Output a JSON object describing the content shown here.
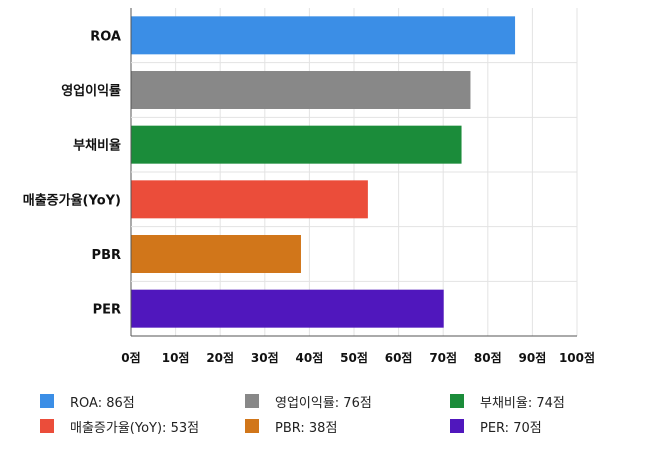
{
  "chart_data": {
    "type": "bar",
    "orientation": "horizontal",
    "categories": [
      "ROA",
      "영업이익률",
      "부채비율",
      "매출증가율(YoY)",
      "PBR",
      "PER"
    ],
    "values": [
      86,
      76,
      74,
      53,
      38,
      70
    ],
    "colors": [
      "#3b8ee6",
      "#888888",
      "#1b8c3a",
      "#eb4d3a",
      "#d1761a",
      "#5017bd"
    ],
    "xlim": [
      0,
      100
    ],
    "x_ticks": [
      "0점",
      "10점",
      "20점",
      "30점",
      "40점",
      "50점",
      "60점",
      "70점",
      "80점",
      "90점",
      "100점"
    ],
    "grid": true,
    "legend_position": "bottom",
    "legend": [
      "ROA: 86점",
      "영업이익률: 76점",
      "부채비율: 74점",
      "매출증가율(YoY): 53점",
      "PBR: 38점",
      "PER: 70점"
    ]
  }
}
